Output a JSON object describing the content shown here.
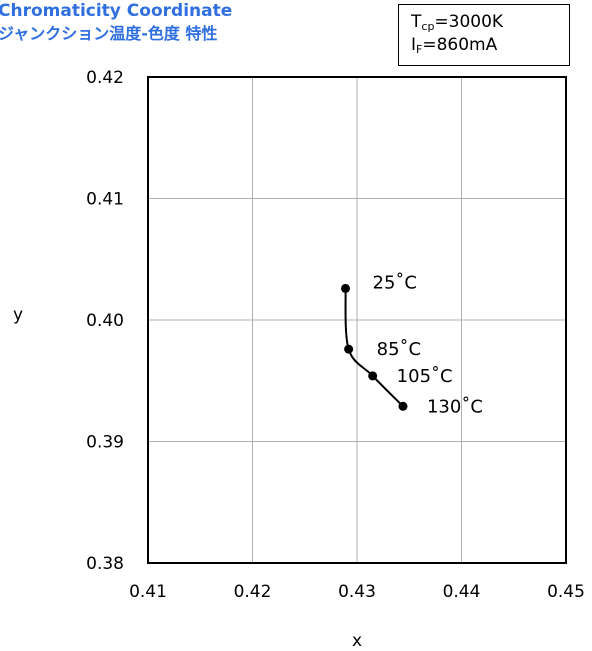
{
  "header": {
    "title_en": "Chromaticity Coordinate",
    "title_jp": "ジャンクション温度-色度 特性"
  },
  "conditions": {
    "tcp_symbol": "T",
    "tcp_sub": "cp",
    "tcp_value": "=3000K",
    "if_symbol": "I",
    "if_sub": "F",
    "if_value": "=860mA"
  },
  "chart_data": {
    "type": "line",
    "xlabel": "x",
    "ylabel": "y",
    "xlim": [
      0.41,
      0.45
    ],
    "ylim": [
      0.38,
      0.42
    ],
    "x_ticks": [
      "0.41",
      "0.42",
      "0.43",
      "0.44",
      "0.45"
    ],
    "y_ticks": [
      "0.38",
      "0.39",
      "0.40",
      "0.41",
      "0.42"
    ],
    "grid": true,
    "line_color": "#000000",
    "series": [
      {
        "points": [
          {
            "x": 0.4289,
            "y": 0.4026,
            "label": "25˚C"
          },
          {
            "x": 0.4292,
            "y": 0.3976,
            "label": "85˚C"
          },
          {
            "x": 0.4315,
            "y": 0.3954,
            "label": "105˚C"
          },
          {
            "x": 0.4344,
            "y": 0.3929,
            "label": "130˚C"
          }
        ]
      }
    ]
  }
}
